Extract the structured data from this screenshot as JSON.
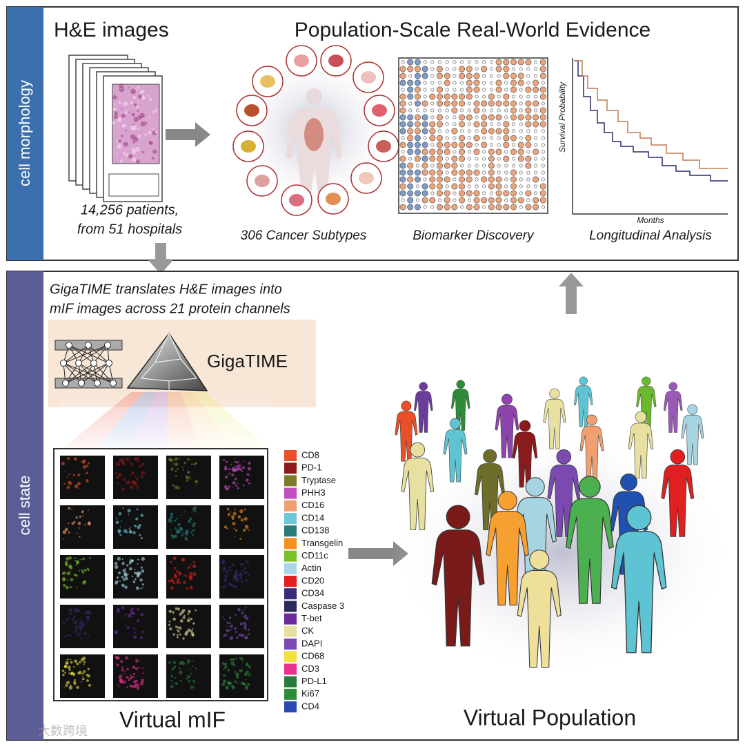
{
  "top_panel": {
    "side_label": "cell morphology",
    "he_title": "H&E images",
    "he_caption": [
      "14,256 patients,",
      "from 51 hospitals"
    ],
    "title": "Population-Scale Real-World Evidence",
    "captions": [
      "306 Cancer Subtypes",
      "Biomarker Discovery",
      "Longitudinal Analysis"
    ],
    "km_y_label": "Survival Probability",
    "km_x_label": "Months"
  },
  "bottom_panel": {
    "side_label": "cell state",
    "description": [
      "GigaTIME translates H&E images into",
      "mIF images across 21 protein channels"
    ],
    "model_name": "GigaTIME",
    "mif_title": "Virtual mIF",
    "population_title": "Virtual Population",
    "channels": [
      {
        "name": "CD8",
        "color": "#e8502a"
      },
      {
        "name": "PD-1",
        "color": "#8b1a1a"
      },
      {
        "name": "Tryptase",
        "color": "#7a7a2a"
      },
      {
        "name": "PHH3",
        "color": "#c050c0"
      },
      {
        "name": "CD16",
        "color": "#f0a070"
      },
      {
        "name": "CD14",
        "color": "#6cc8d8"
      },
      {
        "name": "CD138",
        "color": "#2a7a7a"
      },
      {
        "name": "Transgelin",
        "color": "#f5901e"
      },
      {
        "name": "CD11c",
        "color": "#7ac02a"
      },
      {
        "name": "Actin",
        "color": "#a8d8e8"
      },
      {
        "name": "CD20",
        "color": "#e02020"
      },
      {
        "name": "CD34",
        "color": "#3a2a7a"
      },
      {
        "name": "Caspase 3",
        "color": "#2a2a5a"
      },
      {
        "name": "T-bet",
        "color": "#6a2a9a"
      },
      {
        "name": "CK",
        "color": "#e8e0a0"
      },
      {
        "name": "DAPI",
        "color": "#7a4ab0"
      },
      {
        "name": "CD68",
        "color": "#f0e040"
      },
      {
        "name": "CD3",
        "color": "#e83090"
      },
      {
        "name": "PD-L1",
        "color": "#2a7a3a"
      },
      {
        "name": "Ki67",
        "color": "#2e8b3a"
      },
      {
        "name": "CD4",
        "color": "#2a4ab0"
      }
    ]
  },
  "watermark": "大数跨境"
}
